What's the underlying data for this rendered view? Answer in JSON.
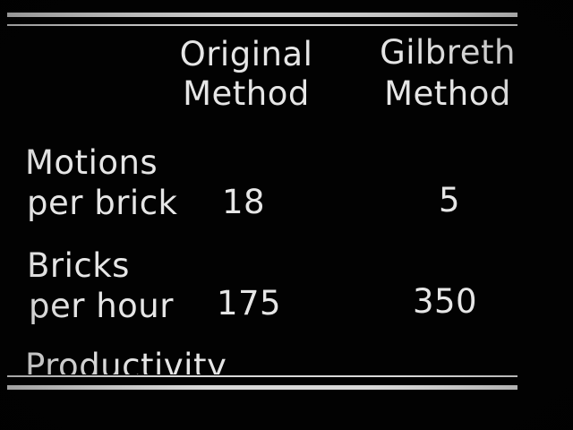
{
  "table": {
    "headers": {
      "original": [
        "Original",
        "Method"
      ],
      "gilbreth": [
        "Gilbreth",
        "Method"
      ]
    },
    "rows": [
      {
        "label": [
          "Motions",
          "per brick"
        ],
        "original": "18",
        "gilbreth": "5"
      },
      {
        "label": [
          "Bricks",
          "per hour"
        ],
        "original": "175",
        "gilbreth": "350"
      }
    ],
    "footer_label": "Productivity"
  }
}
